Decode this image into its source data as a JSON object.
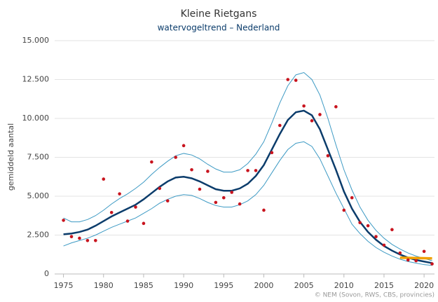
{
  "chart_data": {
    "type": "line",
    "title": "Kleine Rietgans",
    "subtitle": "watervogeltrend – Nederland",
    "y_label": "gemiddeld aantal",
    "credit": "© NEM (Sovon, RWS, CBS, provincies)",
    "x": [
      1975,
      1976,
      1977,
      1978,
      1979,
      1980,
      1981,
      1982,
      1983,
      1984,
      1985,
      1986,
      1987,
      1988,
      1989,
      1990,
      1991,
      1992,
      1993,
      1994,
      1995,
      1996,
      1997,
      1998,
      1999,
      2000,
      2001,
      2002,
      2003,
      2004,
      2005,
      2006,
      2007,
      2008,
      2009,
      2010,
      2011,
      2012,
      2013,
      2014,
      2015,
      2016,
      2017,
      2018,
      2019,
      2020,
      2021
    ],
    "trend": {
      "color": "#0b3c6b",
      "values": [
        2550,
        2600,
        2700,
        2850,
        3100,
        3400,
        3700,
        3950,
        4200,
        4450,
        4800,
        5200,
        5600,
        5950,
        6200,
        6250,
        6150,
        5950,
        5700,
        5450,
        5350,
        5350,
        5500,
        5800,
        6300,
        7000,
        8000,
        9000,
        9900,
        10400,
        10500,
        10200,
        9300,
        8000,
        6700,
        5300,
        4200,
        3350,
        2700,
        2200,
        1800,
        1500,
        1250,
        1050,
        900,
        800,
        700
      ]
    },
    "upper": {
      "color": "#3d9ac4",
      "values": [
        3600,
        3350,
        3350,
        3500,
        3750,
        4100,
        4500,
        4850,
        5150,
        5500,
        5900,
        6400,
        6850,
        7250,
        7600,
        7750,
        7650,
        7400,
        7050,
        6750,
        6550,
        6550,
        6700,
        7100,
        7700,
        8500,
        9700,
        11000,
        12100,
        12800,
        12950,
        12500,
        11500,
        10000,
        8300,
        6700,
        5400,
        4300,
        3450,
        2800,
        2300,
        1900,
        1600,
        1350,
        1150,
        1000,
        850
      ]
    },
    "lower": {
      "color": "#3d9ac4",
      "values": [
        1800,
        2000,
        2150,
        2300,
        2500,
        2750,
        3000,
        3200,
        3400,
        3600,
        3900,
        4200,
        4550,
        4800,
        5000,
        5100,
        5050,
        4850,
        4600,
        4400,
        4300,
        4300,
        4450,
        4700,
        5100,
        5700,
        6500,
        7300,
        8000,
        8400,
        8500,
        8200,
        7400,
        6300,
        5200,
        4200,
        3200,
        2600,
        2100,
        1700,
        1400,
        1150,
        950,
        800,
        700,
        600,
        550
      ]
    },
    "points": {
      "color": "#c8141e",
      "values": [
        3450,
        2400,
        2300,
        2150,
        2150,
        6100,
        3950,
        5150,
        3400,
        4300,
        3250,
        7200,
        5500,
        4700,
        7500,
        8250,
        6700,
        5450,
        6600,
        4600,
        4900,
        5250,
        4500,
        6650,
        6650,
        4100,
        7800,
        9550,
        12500,
        12450,
        10800,
        9850,
        10250,
        7600,
        10750,
        4100,
        4900,
        3300,
        3100,
        2400,
        1850,
        2850,
        1350,
        900,
        850,
        1450,
        650
      ]
    },
    "recent": {
      "color": "#f0a000",
      "x": [
        2017,
        2021
      ],
      "values": [
        1050,
        1000
      ]
    },
    "xlim": [
      1973.9,
      2021.3
    ],
    "xticks": [
      1975,
      1980,
      1985,
      1990,
      1995,
      2000,
      2005,
      2010,
      2015,
      2020
    ],
    "ylim": [
      0,
      15000
    ],
    "yticks": [
      0,
      {
        "value": 2500,
        "label": "2.500"
      },
      {
        "value": 5000,
        "label": "5.000"
      },
      {
        "value": 7500,
        "label": "7.500"
      },
      {
        "value": 10000,
        "label": "10.000"
      },
      {
        "value": 12500,
        "label": "12.500"
      },
      {
        "value": 15000,
        "label": "15.000"
      }
    ],
    "grid": true
  }
}
